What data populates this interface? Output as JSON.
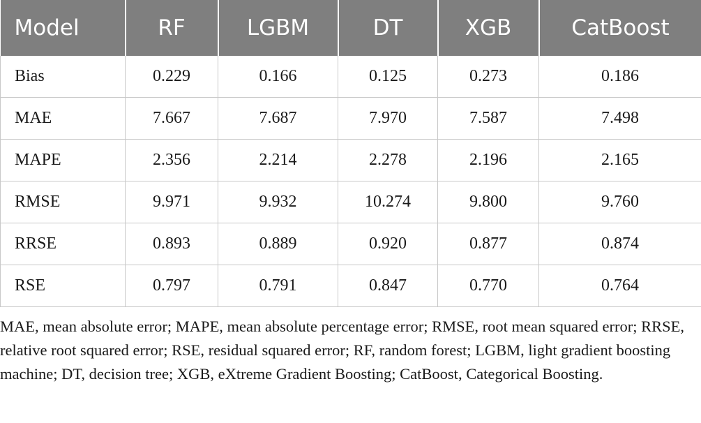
{
  "table": {
    "headers": [
      "Model",
      "RF",
      "LGBM",
      "DT",
      "XGB",
      "CatBoost"
    ],
    "rows": [
      [
        "Bias",
        "0.229",
        "0.166",
        "0.125",
        "0.273",
        "0.186"
      ],
      [
        "MAE",
        "7.667",
        "7.687",
        "7.970",
        "7.587",
        "7.498"
      ],
      [
        "MAPE",
        "2.356",
        "2.214",
        "2.278",
        "2.196",
        "2.165"
      ],
      [
        "RMSE",
        "9.971",
        "9.932",
        "10.274",
        "9.800",
        "9.760"
      ],
      [
        "RRSE",
        "0.893",
        "0.889",
        "0.920",
        "0.877",
        "0.874"
      ],
      [
        "RSE",
        "0.797",
        "0.791",
        "0.847",
        "0.770",
        "0.764"
      ]
    ]
  },
  "footnote": "MAE, mean absolute error; MAPE, mean absolute percentage error; RMSE, root mean squared error; RRSE, relative root squared error; RSE, residual squared error; RF, random forest; LGBM, light gradient boosting machine; DT, decision tree; XGB, eXtreme Gradient Boosting; CatBoost, Categorical Boosting.",
  "colors": {
    "header_background": "#7f7f7f",
    "header_text": "#ffffff",
    "body_text": "#1a1a1a",
    "grid_lines": "#c8c8c8"
  }
}
